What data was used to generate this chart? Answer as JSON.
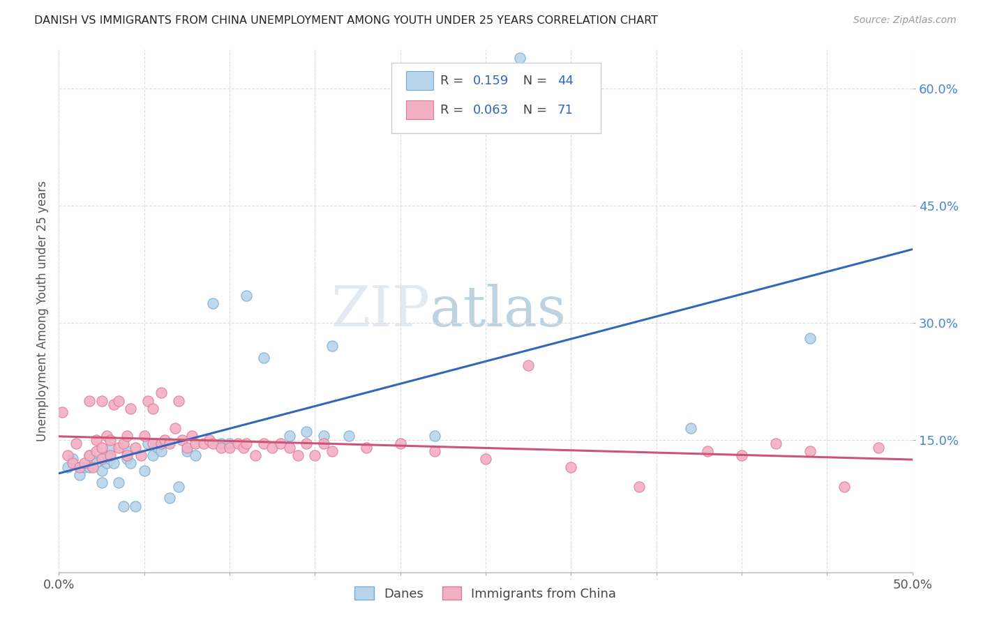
{
  "title": "DANISH VS IMMIGRANTS FROM CHINA UNEMPLOYMENT AMONG YOUTH UNDER 25 YEARS CORRELATION CHART",
  "source": "Source: ZipAtlas.com",
  "ylabel": "Unemployment Among Youth under 25 years",
  "xlim": [
    0.0,
    0.5
  ],
  "ylim": [
    -0.02,
    0.65
  ],
  "ytick_positions": [
    0.15,
    0.3,
    0.45,
    0.6
  ],
  "ytick_labels": [
    "15.0%",
    "30.0%",
    "45.0%",
    "60.0%"
  ],
  "danes_color": "#b8d4ea",
  "danes_edge_color": "#7aaacf",
  "china_color": "#f2b0c4",
  "china_edge_color": "#e07898",
  "trend_danes_color": "#3366bb",
  "trend_china_color": "#cc5577",
  "watermark_zip": "#c8d8e8",
  "watermark_atlas": "#9ab8cc",
  "danes_x": [
    0.005,
    0.008,
    0.012,
    0.015,
    0.018,
    0.018,
    0.02,
    0.022,
    0.025,
    0.025,
    0.028,
    0.028,
    0.03,
    0.03,
    0.032,
    0.035,
    0.038,
    0.04,
    0.04,
    0.042,
    0.045,
    0.05,
    0.052,
    0.055,
    0.058,
    0.06,
    0.065,
    0.07,
    0.075,
    0.08,
    0.09,
    0.095,
    0.1,
    0.11,
    0.12,
    0.135,
    0.145,
    0.155,
    0.16,
    0.17,
    0.22,
    0.27,
    0.37,
    0.44
  ],
  "danes_y": [
    0.115,
    0.125,
    0.105,
    0.115,
    0.115,
    0.13,
    0.125,
    0.12,
    0.095,
    0.11,
    0.12,
    0.13,
    0.125,
    0.14,
    0.12,
    0.095,
    0.065,
    0.125,
    0.135,
    0.12,
    0.065,
    0.11,
    0.145,
    0.13,
    0.14,
    0.135,
    0.075,
    0.09,
    0.135,
    0.13,
    0.325,
    0.145,
    0.145,
    0.335,
    0.255,
    0.155,
    0.16,
    0.155,
    0.27,
    0.155,
    0.155,
    0.64,
    0.165,
    0.28
  ],
  "china_x": [
    0.002,
    0.005,
    0.008,
    0.01,
    0.012,
    0.015,
    0.018,
    0.018,
    0.02,
    0.022,
    0.022,
    0.025,
    0.025,
    0.025,
    0.028,
    0.03,
    0.03,
    0.032,
    0.035,
    0.035,
    0.038,
    0.04,
    0.04,
    0.042,
    0.045,
    0.048,
    0.05,
    0.052,
    0.055,
    0.055,
    0.06,
    0.06,
    0.062,
    0.065,
    0.068,
    0.07,
    0.072,
    0.075,
    0.078,
    0.08,
    0.085,
    0.088,
    0.09,
    0.095,
    0.1,
    0.105,
    0.108,
    0.11,
    0.115,
    0.12,
    0.125,
    0.13,
    0.135,
    0.14,
    0.145,
    0.15,
    0.155,
    0.16,
    0.18,
    0.2,
    0.22,
    0.25,
    0.275,
    0.3,
    0.34,
    0.38,
    0.4,
    0.42,
    0.44,
    0.46,
    0.48
  ],
  "china_y": [
    0.185,
    0.13,
    0.12,
    0.145,
    0.115,
    0.12,
    0.13,
    0.2,
    0.115,
    0.135,
    0.15,
    0.125,
    0.14,
    0.2,
    0.155,
    0.13,
    0.15,
    0.195,
    0.14,
    0.2,
    0.145,
    0.13,
    0.155,
    0.19,
    0.14,
    0.13,
    0.155,
    0.2,
    0.145,
    0.19,
    0.145,
    0.21,
    0.15,
    0.145,
    0.165,
    0.2,
    0.15,
    0.14,
    0.155,
    0.145,
    0.145,
    0.15,
    0.145,
    0.14,
    0.14,
    0.145,
    0.14,
    0.145,
    0.13,
    0.145,
    0.14,
    0.145,
    0.14,
    0.13,
    0.145,
    0.13,
    0.145,
    0.135,
    0.14,
    0.145,
    0.135,
    0.125,
    0.245,
    0.115,
    0.09,
    0.135,
    0.13,
    0.145,
    0.135,
    0.09,
    0.14
  ]
}
